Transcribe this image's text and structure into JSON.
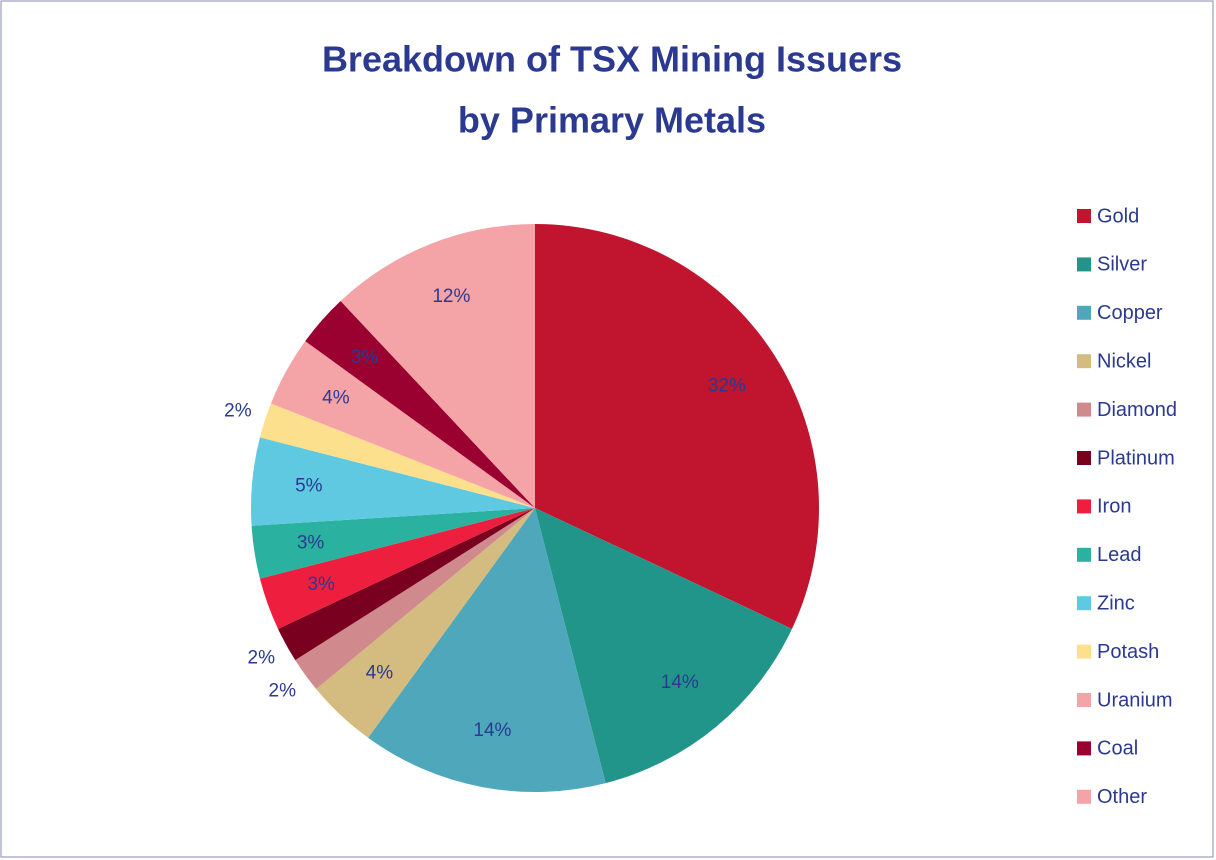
{
  "chart_data": {
    "type": "pie",
    "title": [
      "Breakdown of TSX Mining Issuers",
      "by Primary Metals"
    ],
    "categories": [
      "Gold",
      "Silver",
      "Copper",
      "Nickel",
      "Diamond",
      "Platinum",
      "Iron",
      "Lead",
      "Zinc",
      "Potash",
      "Uranium",
      "Coal",
      "Other"
    ],
    "values": [
      32,
      14,
      14,
      4,
      2,
      2,
      3,
      3,
      5,
      2,
      4,
      3,
      12
    ],
    "value_labels": [
      "32%",
      "14%",
      "14%",
      "4%",
      "2%",
      "2%",
      "3%",
      "3%",
      "5%",
      "2%",
      "4%",
      "3%",
      "12%"
    ],
    "colors": [
      "#c0142f",
      "#22958a",
      "#4fa7bb",
      "#d4bc80",
      "#d08a8e",
      "#7a0020",
      "#ee1f3e",
      "#2bb1a0",
      "#5fc9e2",
      "#fde08e",
      "#f4a4a6",
      "#9a0030",
      "#f4a3a6"
    ],
    "legend": "right"
  }
}
